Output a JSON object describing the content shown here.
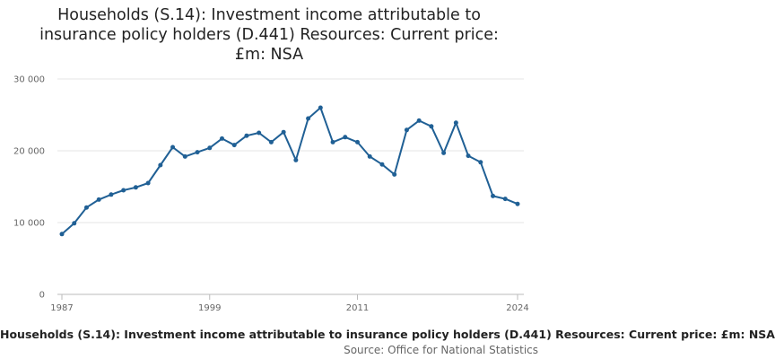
{
  "chart_data": {
    "type": "line",
    "title_lines": [
      "Households (S.14): Investment income attributable to",
      "insurance policy holders (D.441) Resources: Current price:",
      "£m: NSA"
    ],
    "series": [
      {
        "name": "Households (S.14): Investment income attributable to insurance policy holders (D.441) Resources: Current price: £m: NSA",
        "x": [
          1987,
          1988,
          1989,
          1990,
          1991,
          1992,
          1993,
          1994,
          1995,
          1996,
          1997,
          1998,
          1999,
          2000,
          2001,
          2002,
          2003,
          2004,
          2005,
          2006,
          2007,
          2008,
          2009,
          2010,
          2011,
          2012,
          2013,
          2014,
          2015,
          2016,
          2017,
          2018,
          2019,
          2020,
          2021,
          2022,
          2023,
          2024
        ],
        "values": [
          8400,
          9900,
          12100,
          13200,
          13900,
          14500,
          14900,
          15500,
          18000,
          20500,
          19200,
          19800,
          20400,
          21700,
          20800,
          22100,
          22500,
          21200,
          22600,
          18700,
          24500,
          26000,
          21200,
          21900,
          21200,
          19200,
          18100,
          16700,
          22900,
          24200,
          23400,
          19700,
          23900,
          19300,
          18400,
          13700,
          13300,
          12600
        ]
      }
    ],
    "x_ticks": [
      "1987",
      "1999",
      "2011",
      "2024"
    ],
    "y_ticks": [
      "0",
      "10 000",
      "20 000",
      "30 000"
    ],
    "ylim": [
      0,
      30000
    ],
    "xlim": [
      1987,
      2024
    ],
    "grid": true,
    "line_color": "#206095",
    "legend_text": "Households (S.14): Investment income attributable to insurance policy holders (D.441) Resources: Current price: £m: NSA",
    "source_label": "Source: Office for National Statistics"
  }
}
